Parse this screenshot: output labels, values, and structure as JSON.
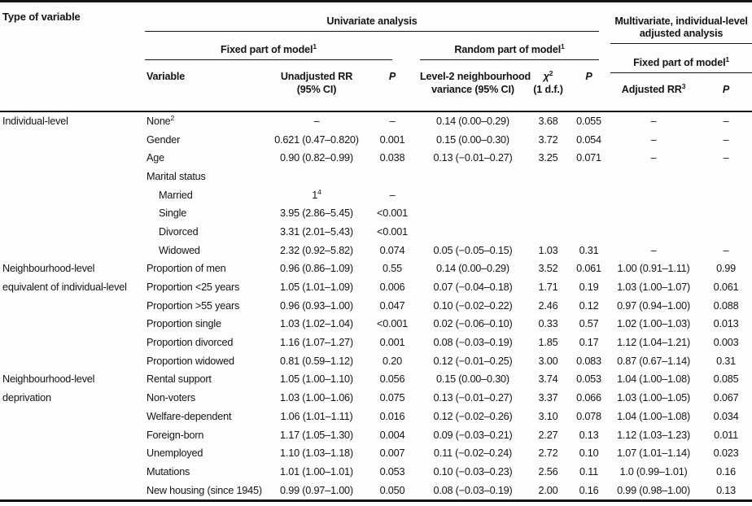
{
  "header": {
    "type_of_variable": "Type of variable",
    "univariate": "Univariate analysis",
    "multivariate": "Multivariate, individual-level adjusted analysis",
    "fixed_part": "Fixed part of model",
    "fixed_part_sup": "1",
    "random_part": "Random part of model",
    "random_part_sup": "1",
    "variable": "Variable",
    "unadjusted_rr_line1": "Unadjusted RR",
    "unadjusted_rr_line2": "(95% CI)",
    "p": "P",
    "variance_line1": "Level-2 neighbourhood",
    "variance_line2": "variance (95% CI)",
    "chi": "χ",
    "chi_sup": "2",
    "chi_df": "(1 d.f.)",
    "adjusted_rr": "Adjusted RR",
    "adjusted_rr_sup": "3"
  },
  "rows": [
    {
      "group": "Individual-level",
      "variable": "None",
      "variable_sup": "2",
      "indent": false,
      "rr": "–",
      "p1": "–",
      "variance": "0.14 (0.00–0.29)",
      "chi2": "3.68",
      "p2": "0.055",
      "adj_rr": "–",
      "p3": "–"
    },
    {
      "group": "",
      "variable": "Gender",
      "indent": false,
      "rr": "0.621 (0.47–0.820)",
      "p1": "0.001",
      "variance": "0.15 (0.00–0.30)",
      "chi2": "3.72",
      "p2": "0.054",
      "adj_rr": "–",
      "p3": "–"
    },
    {
      "group": "",
      "variable": "Age",
      "indent": false,
      "rr": "0.90 (0.82–0.99)",
      "p1": "0.038",
      "variance": "0.13 (−0.01–0.27)",
      "chi2": "3.25",
      "p2": "0.071",
      "adj_rr": "–",
      "p3": "–"
    },
    {
      "group": "",
      "variable": "Marital status",
      "indent": false,
      "rr": "",
      "p1": "",
      "variance": "",
      "chi2": "",
      "p2": "",
      "adj_rr": "",
      "p3": ""
    },
    {
      "group": "",
      "variable": "Married",
      "indent": true,
      "rr": "1",
      "rr_sup": "4",
      "p1": "–",
      "variance": "",
      "chi2": "",
      "p2": "",
      "adj_rr": "",
      "p3": ""
    },
    {
      "group": "",
      "variable": "Single",
      "indent": true,
      "rr": "3.95 (2.86–5.45)",
      "p1": "<0.001",
      "variance": "",
      "chi2": "",
      "p2": "",
      "adj_rr": "",
      "p3": ""
    },
    {
      "group": "",
      "variable": "Divorced",
      "indent": true,
      "rr": "3.31 (2.01–5.43)",
      "p1": "<0.001",
      "variance": "",
      "chi2": "",
      "p2": "",
      "adj_rr": "",
      "p3": ""
    },
    {
      "group": "",
      "variable": "Widowed",
      "indent": true,
      "rr": "2.32 (0.92–5.82)",
      "p1": "0.074",
      "variance": "0.05 (−0.05–0.15)",
      "chi2": "1.03",
      "p2": "0.31",
      "adj_rr": "–",
      "p3": "–"
    },
    {
      "group": "Neighbourhood-level",
      "variable": "Proportion of men",
      "indent": false,
      "rr": "0.96 (0.86–1.09)",
      "p1": "0.55",
      "variance": "0.14 (0.00–0.29)",
      "chi2": "3.52",
      "p2": "0.061",
      "adj_rr": "1.00 (0.91–1.11)",
      "p3": "0.99"
    },
    {
      "group": "equivalent of individual-level",
      "variable": "Proportion <25 years",
      "indent": false,
      "rr": "1.05 (1.01–1.09)",
      "p1": "0.006",
      "variance": "0.07 (−0.04–0.18)",
      "chi2": "1.71",
      "p2": "0.19",
      "adj_rr": "1.03 (1.00–1.07)",
      "p3": "0.061"
    },
    {
      "group": "",
      "variable": "Proportion >55 years",
      "indent": false,
      "rr": "0.96 (0.93–1.00)",
      "p1": "0.047",
      "variance": "0.10 (−0.02–0.22)",
      "chi2": "2.46",
      "p2": "0.12",
      "adj_rr": "0.97 (0.94–1.00)",
      "p3": "0.088"
    },
    {
      "group": "",
      "variable": "Proportion single",
      "indent": false,
      "rr": "1.03 (1.02–1.04)",
      "p1": "<0.001",
      "variance": "0.02 (−0.06–0.10)",
      "chi2": "0.33",
      "p2": "0.57",
      "adj_rr": "1.02 (1.00–1.03)",
      "p3": "0.013"
    },
    {
      "group": "",
      "variable": "Proportion divorced",
      "indent": false,
      "rr": "1.16 (1.07–1.27)",
      "p1": "0.001",
      "variance": "0.08 (−0.03–0.19)",
      "chi2": "1.85",
      "p2": "0.17",
      "adj_rr": "1.12 (1.04–1.21)",
      "p3": "0.003"
    },
    {
      "group": "",
      "variable": "Proportion widowed",
      "indent": false,
      "rr": "0.81 (0.59–1.12)",
      "p1": "0.20",
      "variance": "0.12 (−0.01–0.25)",
      "chi2": "3.00",
      "p2": "0.083",
      "adj_rr": "0.87 (0.67–1.14)",
      "p3": "0.31"
    },
    {
      "group": "Neighbourhood-level",
      "variable": "Rental support",
      "indent": false,
      "rr": "1.05 (1.00–1.10)",
      "p1": "0.056",
      "variance": "0.15 (0.00–0.30)",
      "chi2": "3.74",
      "p2": "0.053",
      "adj_rr": "1.04 (1.00–1.08)",
      "p3": "0.085"
    },
    {
      "group": "deprivation",
      "variable": "Non-voters",
      "indent": false,
      "rr": "1.03 (1.00–1.06)",
      "p1": "0.075",
      "variance": "0.13 (−0.01–0.27)",
      "chi2": "3.37",
      "p2": "0.066",
      "adj_rr": "1.03 (1.00–1.05)",
      "p3": "0.067"
    },
    {
      "group": "",
      "variable": "Welfare-dependent",
      "indent": false,
      "rr": "1.06 (1.01–1.11)",
      "p1": "0.016",
      "variance": "0.12 (−0.02–0.26)",
      "chi2": "3.10",
      "p2": "0.078",
      "adj_rr": "1.04 (1.00–1.08)",
      "p3": "0.034"
    },
    {
      "group": "",
      "variable": "Foreign-born",
      "indent": false,
      "rr": "1.17 (1.05–1.30)",
      "p1": "0.004",
      "variance": "0.09 (−0.03–0.21)",
      "chi2": "2.27",
      "p2": "0.13",
      "adj_rr": "1.12 (1.03–1.23)",
      "p3": "0.011"
    },
    {
      "group": "",
      "variable": "Unemployed",
      "indent": false,
      "rr": "1.10 (1.03–1.18)",
      "p1": "0.007",
      "variance": "0.11 (−0.02–0.24)",
      "chi2": "2.72",
      "p2": "0.10",
      "adj_rr": "1.07 (1.01–1.14)",
      "p3": "0.023"
    },
    {
      "group": "",
      "variable": "Mutations",
      "indent": false,
      "rr": "1.01 (1.00–1.01)",
      "p1": "0.053",
      "variance": "0.10 (−0.03–0.23)",
      "chi2": "2.56",
      "p2": "0.11",
      "adj_rr": "1.0 (0.99–1.01)",
      "p3": "0.16"
    },
    {
      "group": "",
      "variable": "New housing (since 1945)",
      "indent": false,
      "rr": "0.99 (0.97–1.00)",
      "p1": "0.050",
      "variance": "0.08 (−0.03–0.19)",
      "chi2": "2.00",
      "p2": "0.16",
      "adj_rr": "0.99 (0.98–1.00)",
      "p3": "0.13"
    }
  ]
}
